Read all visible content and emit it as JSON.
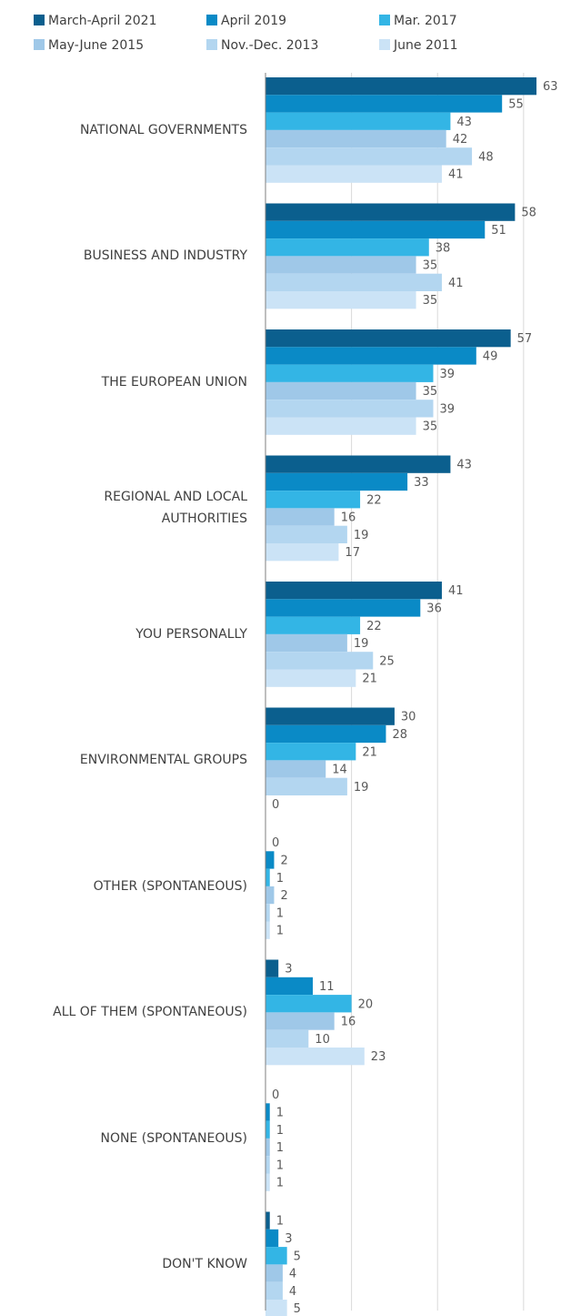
{
  "chart_data": {
    "type": "hbar",
    "categories": [
      "NATIONAL GOVERNMENTS",
      "BUSINESS AND INDUSTRY",
      "THE EUROPEAN UNION",
      "REGIONAL AND LOCAL AUTHORITIES",
      "YOU PERSONALLY",
      "ENVIRONMENTAL GROUPS",
      "OTHER (SPONTANEOUS)",
      "ALL OF THEM (SPONTANEOUS)",
      "NONE (SPONTANEOUS)",
      "DON'T KNOW"
    ],
    "series": [
      {
        "name": "March-April 2021",
        "color": "#0b5f8e",
        "values": [
          63,
          58,
          57,
          43,
          41,
          30,
          0,
          3,
          0,
          1
        ]
      },
      {
        "name": "April 2019",
        "color": "#0a8ac6",
        "values": [
          55,
          51,
          49,
          33,
          36,
          28,
          2,
          11,
          1,
          3
        ]
      },
      {
        "name": "Mar. 2017",
        "color": "#33b5e5",
        "values": [
          43,
          38,
          39,
          22,
          22,
          21,
          1,
          20,
          1,
          5
        ]
      },
      {
        "name": "May-June 2015",
        "color": "#9fc8e8",
        "values": [
          42,
          35,
          35,
          16,
          19,
          14,
          2,
          16,
          1,
          4
        ]
      },
      {
        "name": "Nov.-Dec. 2013",
        "color": "#b3d6f0",
        "values": [
          48,
          41,
          39,
          19,
          25,
          19,
          1,
          10,
          1,
          4
        ]
      },
      {
        "name": "June 2011",
        "color": "#cbe3f6",
        "values": [
          41,
          35,
          35,
          17,
          21,
          0,
          1,
          23,
          1,
          5
        ]
      }
    ],
    "xlim": [
      0,
      68.7
    ],
    "gridlines": [
      20,
      40,
      60
    ],
    "grid": true
  }
}
